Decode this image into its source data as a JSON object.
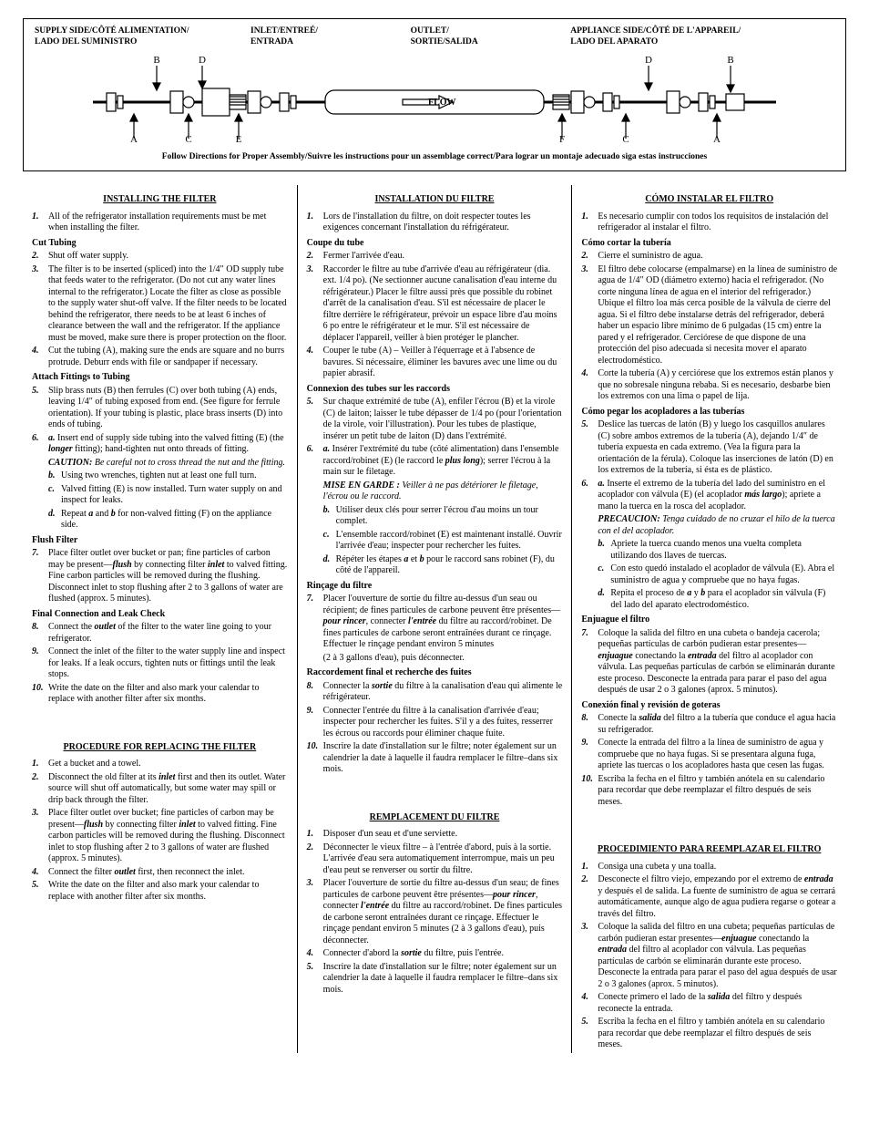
{
  "diagram": {
    "labels": {
      "supply": "SUPPLY SIDE/CÔTÉ ALIMENTATION/\nLADO DEL SUMINISTRO",
      "inlet": "INLET/ENTREÉ/\nENTRADA",
      "outlet": "OUTLET/\nSORTIE/SALIDA",
      "appliance": "APPLIANCE SIDE/CÔTÉ DE L'APPAREIL/\nLADO DEL APARATO"
    },
    "flow": "FLOW",
    "letters_left": [
      "B",
      "D",
      "A",
      "C",
      "E"
    ],
    "letters_right": [
      "D",
      "B",
      "F",
      "C",
      "A"
    ],
    "follow": "Follow Directions for Proper Assembly/Suivre les instructions pour un assemblage correct/Para lograr un montaje adecuado siga estas instrucciones"
  },
  "en": {
    "install_title": "INSTALLING THE FILTER",
    "cut_tubing": "Cut Tubing",
    "attach": "Attach Fittings to Tubing",
    "flush": "Flush Filter",
    "final": "Final Connection and Leak Check",
    "proc_title": "PROCEDURE FOR REPLACING THE FILTER",
    "i1": "All of the refrigerator installation requirements  must be met when installing the filter.",
    "i2": "Shut off water supply.",
    "i3": "The filter is to be inserted (spliced) into the 1/4″ OD supply tube that feeds water to the refrigerator. (Do not cut any water lines internal to the refrigerator.) Locate the filter as close as possible to the supply water shut-off valve. If the filter needs to be located behind the refrigerator, there needs to be at least 6 inches of clearance between the wall and the refrigerator. If the appliance must be moved, make sure there is proper protection on the floor.",
    "i4": "Cut the tubing (A), making sure the ends are square and no burrs protrude. Deburr ends with file or sandpaper if necessary.",
    "i5": "Slip brass nuts (B) then ferrules (C) over both tubing (A) ends, leaving 1/4″ of tubing exposed from end. (See figure for ferrule orientation). If your tubing is plastic, place brass inserts (D) into ends of tubing.",
    "i6a": "Insert end of supply side tubing into the valved fitting (E) (the ",
    "i6a_b": "longer",
    "i6a2": " fitting); hand-tighten nut onto threads of fitting.",
    "caution": "CAUTION: ",
    "caution_t": "Be careful not to cross thread the nut and the fitting.",
    "i6b": "Using two wrenches, tighten nut at least one full turn.",
    "i6c": "Valved fitting (E) is now installed. Turn water supply on and inspect for leaks.",
    "i6d": "Repeat ",
    "i6d2": " and ",
    "i6d3": " for non-valved fitting (F) on the appliance side.",
    "i7a": "Place filter outlet over bucket or pan; fine particles of carbon may be present—",
    "i7b": "flush",
    "i7c": " by connecting filter ",
    "i7d": "inlet",
    "i7e": " to valved fitting. Fine carbon particles will be removed during the flushing. Disconnect inlet to stop flushing after 2 to 3 gallons of water are flushed (approx. 5 minutes).",
    "i8a": "Connect the ",
    "i8b": "outlet",
    "i8c": " of the filter to the water line going to your refrigerator.",
    "i9": "Connect the inlet of the filter to the water supply line and inspect for leaks. If a leak occurs, tighten nuts or fittings until the leak stops.",
    "i10": "Write the date on the filter and also mark your calendar to replace with another filter after six months.",
    "p1": "Get a bucket and a towel.",
    "p2a": "Disconnect the old filter at its ",
    "p2b": "inlet",
    "p2c": " first and then its outlet. Water source will shut off automatically, but some water may spill or drip back through the filter.",
    "p3a": "Place filter outlet over bucket; fine particles of carbon may be present—",
    "p3b": "flush",
    "p3c": " by connecting filter ",
    "p3d": "inlet",
    "p3e": " to valved fitting. Fine carbon particles will be removed during the flushing. Disconnect inlet to stop flushing after 2 to 3 gallons of water are flushed (approx. 5 minutes).",
    "p4a": "Connect the filter ",
    "p4b": "outlet",
    "p4c": " first, then reconnect the inlet.",
    "p5": "Write the date on the filter and also mark your calendar to replace with another filter after six months."
  },
  "fr": {
    "install_title": "INSTALLATION DU FILTRE",
    "coupe": "Coupe du tube",
    "conn": "Connexion des tubes sur les raccords",
    "rinc": "Rinçage du filtre",
    "final": "Raccordement final et recherche des fuites",
    "proc_title": "REMPLACEMENT DU FILTRE",
    "i1": "Lors de l'installation du filtre, on doit respecter toutes les exigences concernant l'installation du réfrigérateur.",
    "i2": "Fermer l'arrivée d'eau.",
    "i3": "Raccorder le filtre au tube d'arrivée d'eau au réfrigérateur (dia. ext. 1/4 po). (Ne sectionner aucune canalisation d'eau interne du réfrigérateur.) Placer le filtre aussi près que possible du robinet d'arrêt de la canalisation d'eau. S'il est nécessaire de placer le filtre derrière le réfrigérateur, prévoir un espace libre d'au moins 6 po entre le réfrigérateur et le mur. S'il est nécessaire de déplacer l'appareil, veiller à bien protéger le plancher.",
    "i4": "Couper le tube (A) – Veiller à l'équerrage et à l'absence de bavures. Si nécessaire, éliminer les bavures avec une lime ou du papier abrasif.",
    "i5": "Sur chaque extrémité de tube (A), enfiler l'écrou (B) et la virole (C) de laiton; laisser le tube dépasser de 1/4 po (pour l'orientation de la virole, voir l'illustration). Pour les tubes de plastique, insérer un petit tube de laiton (D) dans l'extrémité.",
    "i6a": "Insérer l'extrémité du tube (côté alimentation) dans l'ensemble raccord/robinet (E) (le raccord le ",
    "i6a_b": "plus long",
    "i6a2": "); serrer l'écrou à la main sur le filetage.",
    "mise": "MISE EN GARDE : ",
    "mise_t": "Veiller à ne pas détériorer le filetage, l'écrou ou le raccord.",
    "i6b": "Utiliser deux clés pour serrer l'écrou d'au moins un tour complet.",
    "i6c": "L'ensemble raccord/robinet (E) est maintenant installé. Ouvrir l'arrivée d'eau; inspecter pour rechercher les fuites.",
    "i6d": "Répéter les étapes ",
    "i6d2": " et ",
    "i6d3": " pour le raccord sans robinet (F), du côté de l'appareil.",
    "i7a": "Placer l'ouverture de sortie du filtre au-dessus d'un seau ou récipient; de fines particules de carbone peuvent être présentes—",
    "i7b": "pour rincer",
    "i7c": ", connecter ",
    "i7d": "l'entrée",
    "i7e": " du filtre au raccord/robinet. De fines particules de carbone seront entraînées durant ce rinçage. Effectuer le rinçage pendant environ 5 minutes",
    "i7f": "(2 à 3 gallons d'eau), puis déconnecter.",
    "i8a": "Connecter la ",
    "i8b": "sortie",
    "i8c": " du filtre à la canalisation d'eau qui alimente le réfrigérateur.",
    "i9": "Connecter l'entrée du filtre à la canalisation d'arrivée d'eau; inspecter pour rechercher les fuites. S'il y a des fuites, resserrer les écrous ou raccords pour éliminer chaque fuite.",
    "i10": "Inscrire la date d'installation sur le filtre; noter également sur un calendrier la date à laquelle il faudra remplacer le filtre–dans six mois.",
    "p1": "Disposer d'un seau et d'une serviette.",
    "p2": "Déconnecter le vieux filtre – à l'entrée d'abord, puis à la sortie. L'arrivée d'eau sera automatiquement interrompue, mais un peu d'eau peut se renverser ou sortir du filtre.",
    "p3a": "Placer l'ouverture de sortie du filtre au-dessus d'un seau; de fines particules de carbone peuvent être présentes—",
    "p3b": "pour rincer",
    "p3c": ", connecter ",
    "p3d": "l'entrée",
    "p3e": " du filtre au raccord/robinet. De fines particules de carbone seront entraînées durant ce rinçage. Effectuer le rinçage pendant environ 5 minutes (2 à 3 gallons d'eau), puis déconnecter.",
    "p4a": "Connecter d'abord la ",
    "p4b": "sortie",
    "p4c": " du filtre, puis l'entrée.",
    "p5": "Inscrire la date d'installation sur le filtre; noter également sur un calendrier la date à laquelle il faudra remplacer le filtre–dans six mois."
  },
  "es": {
    "install_title": "CÓMO INSTALAR EL FILTRO",
    "cortar": "Cómo cortar la tubería",
    "pegar": "Cómo pegar los acopladores a las tuberías",
    "enj": "Enjuague el filtro",
    "final": "Conexión final y revisión de goteras",
    "proc_title": "PROCEDIMIENTO PARA REEMPLAZAR EL FILTRO",
    "i1": "Es necesario cumplir con todos los requisitos de instalación del refrigerador al instalar el filtro.",
    "i2": "Cierre el suministro de agua.",
    "i3": "El filtro debe colocarse (empalmarse) en la línea de suministro de agua de 1/4″ OD (diámetro externo) hacia el refrigerador. (No corte ninguna línea de agua en el interior del refrigerador.) Ubique el filtro loa más cerca posible de la válvula de cierre del agua. Si el filtro debe instalarse detrás del refrigerador, deberá haber un espacio libre mínimo de 6 pulgadas (15 cm) entre la pared y el refrigerador. Cerciórese de que dispone de una protección del piso adecuada si necesita mover el aparato electrodoméstico.",
    "i4": "Corte la tubería (A) y cerciórese que los extremos están planos y que no sobresale ninguna rebaba. Si es necesario, desbarbe bien los extremos con una lima o papel de lija.",
    "i5": "Deslice las tuercas de latón (B) y luego los casquillos anulares (C) sobre ambos extremos de la tubería (A), dejando 1/4″ de tubería expuesta en cada extremo. (Vea la figura para la orientación de la férula). Coloque las inserciones de latón (D) en los extremos de la tubería, si ésta es de plástico.",
    "i6a": "Inserte el extremo de la tubería del lado del suministro en el acoplador con válvula (E) (el acoplador ",
    "i6a_b": "más largo",
    "i6a2": "); apriete a mano la tuerca en la rosca del acoplador.",
    "prec": "PRECAUCION: ",
    "prec_t": "Tenga cuidado de no cruzar el hilo de la tuerca con el del acoplador.",
    "i6b": "Apriete la tuerca cuando menos una vuelta completa utilizando dos llaves de tuercas.",
    "i6c": "Con esto quedó instalado el acoplador de válvula (E). Abra el suministro de agua y compruebe que no haya fugas.",
    "i6d": "Repita el proceso de ",
    "i6d2": " y ",
    "i6d3": " para el acoplador sin válvula (F) del lado del aparato electrodoméstico.",
    "i7a": "Coloque la salida del filtro en una cubeta o bandeja cacerola; pequeñas partículas de carbón pudieran estar presentes—",
    "i7b": "enjuague",
    "i7c": " conectando la ",
    "i7d": "entrada",
    "i7e": " del filtro al acoplador con válvula. Las pequeñas partículas de carbón se eliminarán durante este proceso. Desconecte la entrada para parar el paso del agua después de usar 2 o 3 galones (aprox. 5 minutos).",
    "i8a": "Conecte la ",
    "i8b": "salida",
    "i8c": " del filtro a la tubería que conduce el agua hacia su refrigerador.",
    "i9": "Conecte la entrada del filtro a la línea de suministro de agua y compruebe que no haya fugas. Si se presentara alguna fuga, apriete las tuercas o los acopladores hasta que cesen las fugas.",
    "i10": "Escriba la fecha en el filtro y también anótela en su calendario para recordar que debe reemplazar el filtro después de seis meses.",
    "p1": "Consiga una cubeta y una toalla.",
    "p2a": "Desconecte el filtro viejo, empezando por el extremo de ",
    "p2b": "entrada",
    "p2c": " y después el de salida. La fuente de suministro de agua se cerrará automáticamente, aunque algo de agua pudiera regarse o gotear a través del filtro.",
    "p3a": "Coloque la salida del filtro en una cubeta; pequeñas partículas de carbón pudieran estar presentes—",
    "p3b": "enjuague",
    "p3c": " conectando la ",
    "p3d": "entrada",
    "p3e": " del filtro al acoplador con válvula. Las pequeñas partículas de carbón se eliminarán durante este proceso. Desconecte la entrada para parar el paso del agua después de usar 2 o 3 galones (aprox. 5 minutos).",
    "p4a": "Conecte primero el lado de la ",
    "p4b": "salida",
    "p4c": " del filtro y después reconecte la entrada.",
    "p5": "Escriba la fecha en el filtro y también anótela en su calendario para recordar que debe reemplazar el filtro después de seis meses."
  }
}
